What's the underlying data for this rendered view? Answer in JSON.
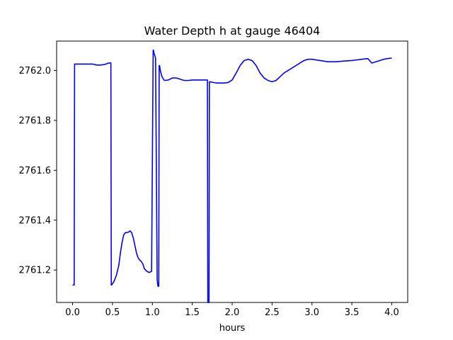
{
  "chart_data": {
    "type": "line",
    "title": "Water Depth h at gauge 46404",
    "xlabel": "hours",
    "ylabel": "",
    "xlim": [
      -0.2,
      4.2
    ],
    "ylim": [
      2761.07,
      2762.118
    ],
    "grid": false,
    "legend": "none",
    "xticks": [
      0.0,
      0.5,
      1.0,
      1.5,
      2.0,
      2.5,
      3.0,
      3.5,
      4.0
    ],
    "xtick_labels": [
      "0.0",
      "0.5",
      "1.0",
      "1.5",
      "2.0",
      "2.5",
      "3.0",
      "3.5",
      "4.0"
    ],
    "yticks": [
      2761.2,
      2761.4,
      2761.6,
      2761.8,
      2762.0
    ],
    "ytick_labels": [
      "2761.2",
      "2761.4",
      "2761.6",
      "2761.8",
      "2762.0"
    ],
    "series": [
      {
        "color": "#0000ff",
        "x": [
          0.0,
          0.02,
          0.025,
          0.05,
          0.1,
          0.15,
          0.2,
          0.25,
          0.3,
          0.35,
          0.4,
          0.45,
          0.48,
          0.485,
          0.49,
          0.52,
          0.55,
          0.58,
          0.6,
          0.62,
          0.64,
          0.66,
          0.68,
          0.7,
          0.72,
          0.74,
          0.76,
          0.78,
          0.8,
          0.82,
          0.84,
          0.86,
          0.88,
          0.9,
          0.93,
          0.96,
          0.99,
          1.01,
          1.015,
          1.02,
          1.04,
          1.06,
          1.07,
          1.08,
          1.085,
          1.09,
          1.1,
          1.12,
          1.15,
          1.2,
          1.25,
          1.3,
          1.35,
          1.4,
          1.45,
          1.5,
          1.55,
          1.6,
          1.65,
          1.69,
          1.695,
          1.7,
          1.71,
          1.715,
          1.72,
          1.75,
          1.8,
          1.85,
          1.9,
          1.95,
          2.0,
          2.05,
          2.1,
          2.15,
          2.2,
          2.25,
          2.3,
          2.35,
          2.4,
          2.45,
          2.5,
          2.55,
          2.6,
          2.65,
          2.7,
          2.75,
          2.8,
          2.85,
          2.9,
          2.95,
          3.0,
          3.1,
          3.2,
          3.3,
          3.4,
          3.5,
          3.55,
          3.6,
          3.65,
          3.7,
          3.75,
          3.8,
          3.85,
          3.9,
          3.95,
          4.0
        ],
        "y": [
          2761.14,
          2761.14,
          2762.026,
          2762.026,
          2762.026,
          2762.026,
          2762.026,
          2762.026,
          2762.022,
          2762.022,
          2762.024,
          2762.03,
          2762.03,
          2761.14,
          2761.14,
          2761.155,
          2761.18,
          2761.22,
          2761.27,
          2761.31,
          2761.34,
          2761.35,
          2761.35,
          2761.352,
          2761.357,
          2761.35,
          2761.33,
          2761.3,
          2761.27,
          2761.25,
          2761.24,
          2761.235,
          2761.225,
          2761.205,
          2761.195,
          2761.19,
          2761.195,
          2762.082,
          2762.08,
          2762.07,
          2762.05,
          2761.16,
          2761.135,
          2761.135,
          2762.02,
          2762.02,
          2762.0,
          2761.975,
          2761.96,
          2761.962,
          2761.97,
          2761.97,
          2761.965,
          2761.96,
          2761.96,
          2761.962,
          2761.962,
          2761.962,
          2761.962,
          2761.962,
          2761.07,
          2761.07,
          2761.07,
          2761.955,
          2761.955,
          2761.953,
          2761.95,
          2761.95,
          2761.95,
          2761.952,
          2761.962,
          2761.99,
          2762.02,
          2762.04,
          2762.045,
          2762.04,
          2762.02,
          2761.99,
          2761.97,
          2761.96,
          2761.955,
          2761.96,
          2761.975,
          2761.99,
          2762.0,
          2762.01,
          2762.02,
          2762.03,
          2762.04,
          2762.045,
          2762.045,
          2762.04,
          2762.035,
          2762.035,
          2762.038,
          2762.04,
          2762.042,
          2762.044,
          2762.046,
          2762.048,
          2762.03,
          2762.035,
          2762.04,
          2762.045,
          2762.048,
          2762.05
        ]
      }
    ]
  }
}
